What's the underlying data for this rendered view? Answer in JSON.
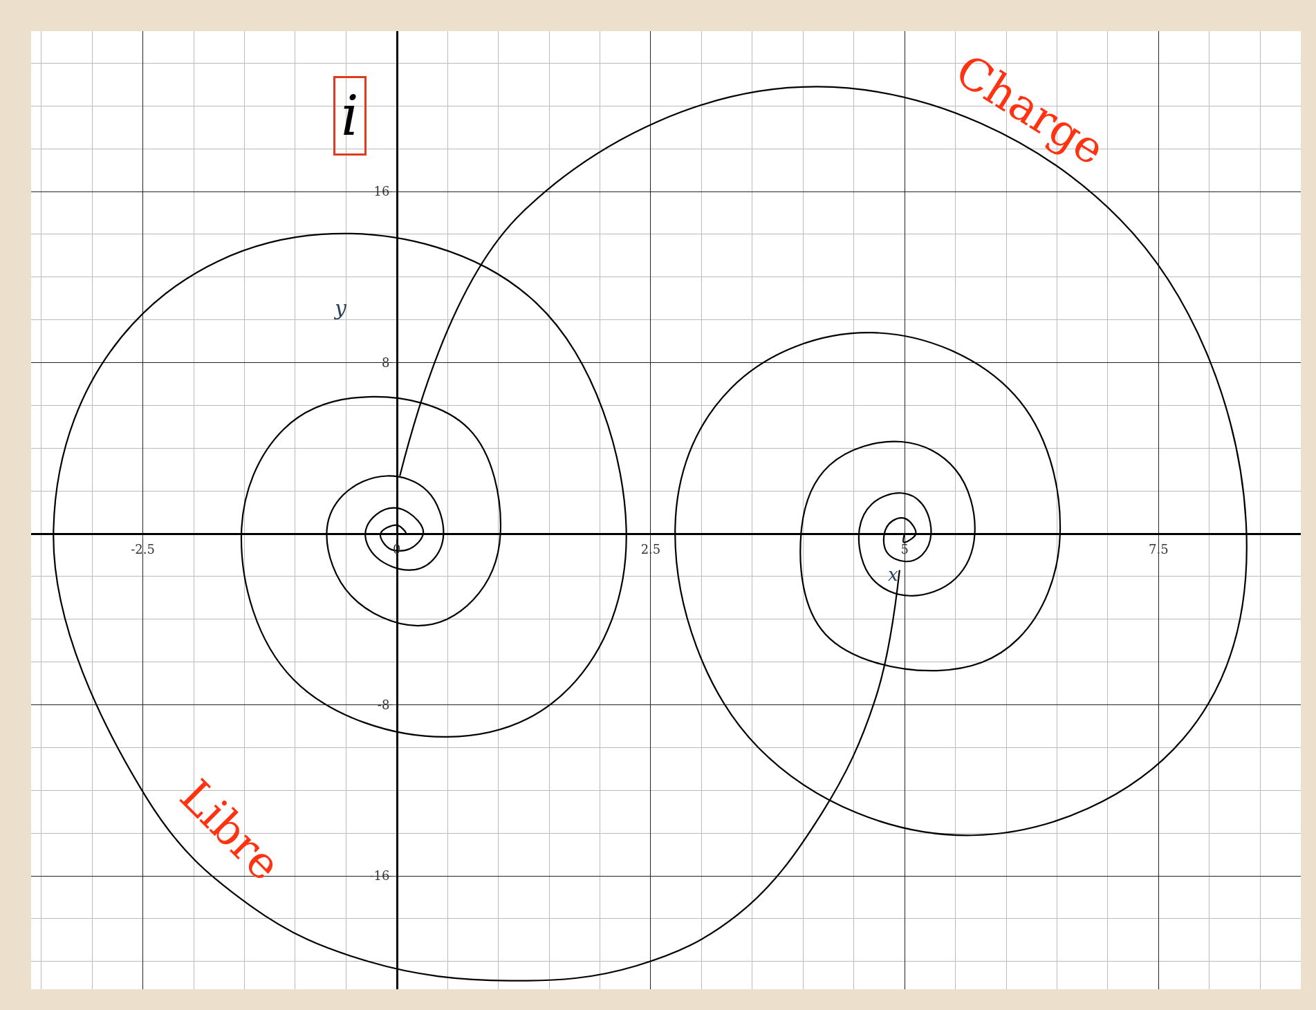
{
  "chart_data": {
    "type": "line",
    "xlabel": "x",
    "ylabel": "y",
    "xlim": [
      -3.6,
      8.9
    ],
    "ylim": [
      -21.3,
      23.5
    ],
    "xticks": [
      -2.5,
      0,
      2.5,
      5,
      7.5
    ],
    "yticks": [
      -16,
      -8,
      8,
      16
    ],
    "grid": true,
    "marker": "none",
    "line_style": "solid",
    "annotations": [
      "i",
      "Charge",
      "Libre"
    ],
    "series": [
      {
        "color": "#000000",
        "x": [
          0.03,
          1.23,
          4.14,
          7.12,
          8.36,
          7.74,
          5.67,
          3.56,
          2.74,
          3.29,
          4.68,
          6.08,
          6.53,
          6.12,
          5.32,
          4.22,
          3.98,
          4.26,
          4.97,
          5.5,
          5.69,
          5.5,
          5.05,
          4.68,
          4.55,
          4.68,
          4.97,
          5.17,
          5.26,
          5.17,
          5.01,
          4.83,
          4.8,
          4.88,
          5.01,
          5.11,
          4.99,
          5.0
        ],
        "values": [
          2.7,
          15.0,
          20.9,
          14.7,
          0.6,
          -9.6,
          -14.1,
          -10.0,
          0,
          6.8,
          9.4,
          6.5,
          0,
          -4.9,
          -6.4,
          -4.7,
          0,
          3.2,
          4.3,
          3.0,
          0,
          -2.1,
          -2.9,
          -2.1,
          0,
          1.4,
          1.9,
          1.4,
          0,
          -1.0,
          -1.3,
          -0.9,
          0,
          0.6,
          0.7,
          0,
          -0.4,
          0
        ]
      },
      {
        "color": "#000000",
        "x": [
          4.95,
          4.72,
          4.18,
          3.36,
          2.36,
          1.12,
          -0.28,
          -1.44,
          -2.47,
          -3.38,
          -2.6,
          -0.74,
          1.37,
          2.26,
          1.7,
          0.5,
          -1.02,
          -1.53,
          -1.11,
          -0.28,
          0.71,
          1.02,
          0.75,
          0.21,
          -0.45,
          -0.69,
          -0.53,
          -0.1,
          0.3,
          0.46,
          0.34,
          0.12,
          -0.2,
          -0.31,
          -0.2,
          0,
          0.21,
          0.26,
          0.13,
          -0.07,
          -0.16,
          0,
          0.09,
          0
        ],
        "values": [
          -1.7,
          -7.6,
          -13.1,
          -17.8,
          -20.2,
          -20.9,
          -20.0,
          -17.4,
          -12.3,
          0,
          9.8,
          14.0,
          10.8,
          0,
          -7.2,
          -9.5,
          -6.8,
          0,
          4.9,
          6.4,
          4.9,
          0,
          -3.1,
          -4.3,
          -2.9,
          0,
          1.8,
          2.7,
          2.0,
          0,
          -1.3,
          -1.7,
          -1.1,
          0,
          0.9,
          1.2,
          0.6,
          0,
          -0.7,
          -0.7,
          0,
          0.4,
          0,
          0
        ]
      }
    ]
  }
}
